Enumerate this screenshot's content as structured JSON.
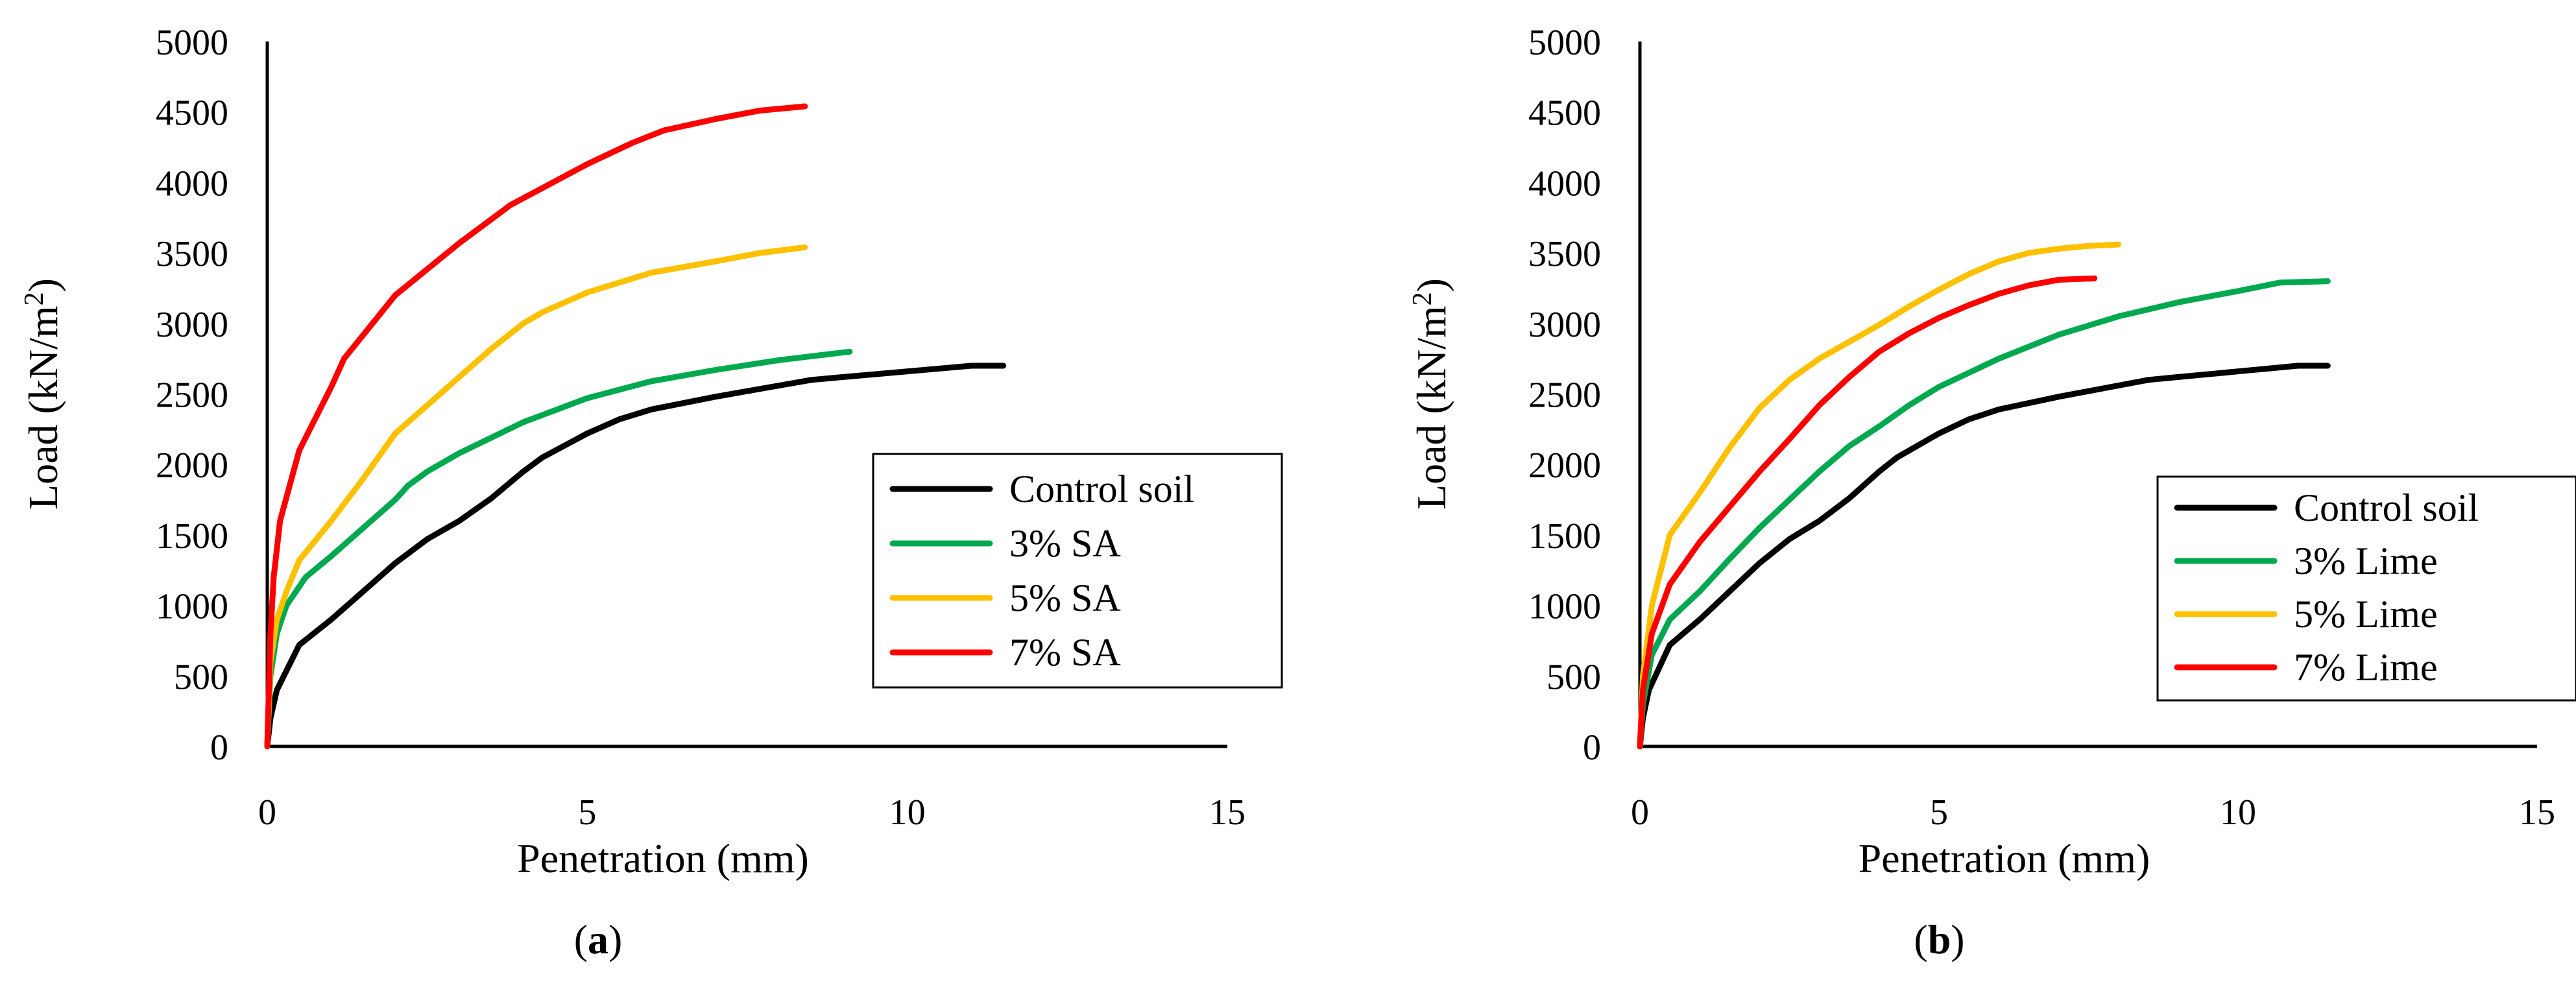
{
  "chart_data": [
    {
      "type": "line",
      "panel_label": "a",
      "xlabel": "Penetration (mm)",
      "ylabel": "Load  (kN/m",
      "ylabel_sup": "2",
      "ylabel_end": ")",
      "xlim": [
        0,
        15
      ],
      "ylim": [
        0,
        5000
      ],
      "xticks": [
        0,
        5,
        10,
        15
      ],
      "yticks": [
        0,
        500,
        1000,
        1500,
        2000,
        2500,
        3000,
        3500,
        4000,
        4500,
        5000
      ],
      "grid": false,
      "legend_position": "right",
      "series": [
        {
          "name": "Control soil",
          "color": "#000000",
          "points": [
            [
              0,
              0
            ],
            [
              0.05,
              200
            ],
            [
              0.15,
              400
            ],
            [
              0.5,
              720
            ],
            [
              1,
              900
            ],
            [
              1.5,
              1100
            ],
            [
              2,
              1300
            ],
            [
              2.5,
              1470
            ],
            [
              3,
              1600
            ],
            [
              3.5,
              1760
            ],
            [
              4,
              1950
            ],
            [
              4.3,
              2050
            ],
            [
              5,
              2220
            ],
            [
              5.5,
              2320
            ],
            [
              6,
              2390
            ],
            [
              7,
              2480
            ],
            [
              8,
              2560
            ],
            [
              8.5,
              2600
            ],
            [
              9,
              2620
            ],
            [
              10,
              2660
            ],
            [
              11,
              2700
            ],
            [
              11.5,
              2700
            ]
          ]
        },
        {
          "name": "3% SA",
          "color": "#00A94F",
          "points": [
            [
              0,
              0
            ],
            [
              0.05,
              500
            ],
            [
              0.15,
              800
            ],
            [
              0.3,
              1000
            ],
            [
              0.6,
              1200
            ],
            [
              1,
              1350
            ],
            [
              1.5,
              1550
            ],
            [
              2,
              1750
            ],
            [
              2.2,
              1850
            ],
            [
              2.5,
              1950
            ],
            [
              3,
              2080
            ],
            [
              3.5,
              2190
            ],
            [
              4,
              2300
            ],
            [
              5,
              2470
            ],
            [
              6,
              2590
            ],
            [
              7,
              2670
            ],
            [
              8,
              2740
            ],
            [
              9.1,
              2800
            ]
          ]
        },
        {
          "name": "5% SA",
          "color": "#FFC000",
          "points": [
            [
              0,
              0
            ],
            [
              0.05,
              600
            ],
            [
              0.15,
              900
            ],
            [
              0.3,
              1100
            ],
            [
              0.5,
              1320
            ],
            [
              1,
              1600
            ],
            [
              1.5,
              1900
            ],
            [
              2,
              2220
            ],
            [
              2.5,
              2420
            ],
            [
              3,
              2620
            ],
            [
              3.5,
              2820
            ],
            [
              4,
              3000
            ],
            [
              4.3,
              3080
            ],
            [
              5,
              3220
            ],
            [
              6,
              3360
            ],
            [
              7,
              3440
            ],
            [
              7.7,
              3500
            ],
            [
              8.4,
              3540
            ]
          ]
        },
        {
          "name": "7% SA",
          "color": "#FF0000",
          "points": [
            [
              0,
              0
            ],
            [
              0.05,
              800
            ],
            [
              0.1,
              1200
            ],
            [
              0.2,
              1600
            ],
            [
              0.5,
              2100
            ],
            [
              1,
              2550
            ],
            [
              1.2,
              2750
            ],
            [
              2,
              3200
            ],
            [
              3,
              3570
            ],
            [
              3.8,
              3840
            ],
            [
              5,
              4130
            ],
            [
              5.7,
              4280
            ],
            [
              6.2,
              4370
            ],
            [
              7,
              4450
            ],
            [
              7.7,
              4510
            ],
            [
              8.4,
              4540
            ]
          ]
        }
      ]
    },
    {
      "type": "line",
      "panel_label": "b",
      "xlabel": "Penetration (mm)",
      "ylabel": "Load (kN/m",
      "ylabel_sup": "2",
      "ylabel_end": ")",
      "xlim": [
        0,
        15
      ],
      "ylim": [
        0,
        5000
      ],
      "xticks": [
        0,
        5,
        10,
        15
      ],
      "yticks": [
        0,
        500,
        1000,
        1500,
        2000,
        2500,
        3000,
        3500,
        4000,
        4500,
        5000
      ],
      "grid": false,
      "legend_position": "bottom-right",
      "series": [
        {
          "name": "Control soil",
          "color": "#000000",
          "points": [
            [
              0,
              0
            ],
            [
              0.05,
              200
            ],
            [
              0.15,
              400
            ],
            [
              0.5,
              720
            ],
            [
              1,
              900
            ],
            [
              1.5,
              1100
            ],
            [
              2,
              1300
            ],
            [
              2.5,
              1470
            ],
            [
              3,
              1600
            ],
            [
              3.5,
              1760
            ],
            [
              4,
              1950
            ],
            [
              4.3,
              2050
            ],
            [
              5,
              2220
            ],
            [
              5.5,
              2320
            ],
            [
              6,
              2390
            ],
            [
              7,
              2480
            ],
            [
              8,
              2560
            ],
            [
              8.5,
              2600
            ],
            [
              9,
              2620
            ],
            [
              10,
              2660
            ],
            [
              11,
              2700
            ],
            [
              11.5,
              2700
            ]
          ]
        },
        {
          "name": "3% Lime",
          "color": "#00A94F",
          "points": [
            [
              0,
              0
            ],
            [
              0.05,
              300
            ],
            [
              0.2,
              650
            ],
            [
              0.5,
              900
            ],
            [
              1,
              1100
            ],
            [
              1.5,
              1330
            ],
            [
              2,
              1550
            ],
            [
              2.5,
              1750
            ],
            [
              3,
              1950
            ],
            [
              3.5,
              2130
            ],
            [
              4,
              2270
            ],
            [
              4.5,
              2420
            ],
            [
              5,
              2550
            ],
            [
              6,
              2750
            ],
            [
              7,
              2920
            ],
            [
              8,
              3050
            ],
            [
              9,
              3150
            ],
            [
              10,
              3230
            ],
            [
              10.7,
              3290
            ],
            [
              11.5,
              3300
            ]
          ]
        },
        {
          "name": "5% Lime",
          "color": "#FFC000",
          "points": [
            [
              0,
              0
            ],
            [
              0.05,
              500
            ],
            [
              0.2,
              1000
            ],
            [
              0.5,
              1500
            ],
            [
              1,
              1800
            ],
            [
              1.5,
              2120
            ],
            [
              2,
              2400
            ],
            [
              2.5,
              2600
            ],
            [
              3,
              2750
            ],
            [
              3.5,
              2870
            ],
            [
              4,
              2990
            ],
            [
              4.5,
              3120
            ],
            [
              5,
              3240
            ],
            [
              5.5,
              3350
            ],
            [
              6,
              3440
            ],
            [
              6.5,
              3500
            ],
            [
              7,
              3530
            ],
            [
              7.5,
              3550
            ],
            [
              8,
              3560
            ]
          ]
        },
        {
          "name": "7% Lime",
          "color": "#FF0000",
          "points": [
            [
              0,
              0
            ],
            [
              0.05,
              400
            ],
            [
              0.2,
              800
            ],
            [
              0.5,
              1150
            ],
            [
              1,
              1450
            ],
            [
              1.5,
              1700
            ],
            [
              2,
              1950
            ],
            [
              2.5,
              2180
            ],
            [
              3,
              2420
            ],
            [
              3.5,
              2620
            ],
            [
              4,
              2800
            ],
            [
              4.5,
              2930
            ],
            [
              5,
              3040
            ],
            [
              5.5,
              3130
            ],
            [
              6,
              3210
            ],
            [
              6.5,
              3270
            ],
            [
              7,
              3310
            ],
            [
              7.6,
              3320
            ]
          ]
        }
      ]
    }
  ]
}
